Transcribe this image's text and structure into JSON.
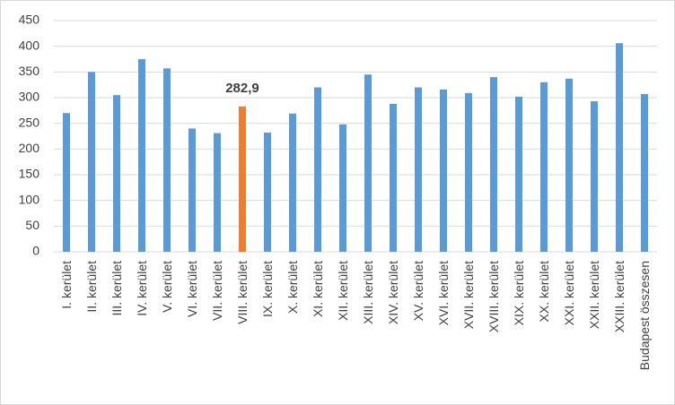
{
  "chart_data": {
    "type": "bar",
    "categories": [
      "I. kerület",
      "II. kerület",
      "III. kerület",
      "IV. kerület",
      "V. kerület",
      "VI. kerület",
      "VII. kerület",
      "VIII. kerület",
      "IX. kerület",
      "X. kerület",
      "XI. kerület",
      "XII. kerület",
      "XIII. kerület",
      "XIV. kerület",
      "XV. kerület",
      "XVI. kerület",
      "XVII. kerület",
      "XVIII. kerület",
      "XIX. kerület",
      "XX. kerület",
      "XXI. kerület",
      "XXII. kerület",
      "XXIII. kerület",
      "Budapest összesen"
    ],
    "values": [
      270,
      350,
      305,
      375,
      357,
      240,
      231,
      282.9,
      232,
      269,
      320,
      248,
      345,
      288,
      320,
      316,
      309,
      340,
      302,
      330,
      337,
      293,
      406,
      307
    ],
    "value_labels": [
      null,
      null,
      null,
      null,
      null,
      null,
      null,
      "282,9",
      null,
      null,
      null,
      null,
      null,
      null,
      null,
      null,
      null,
      null,
      null,
      null,
      null,
      null,
      null,
      null
    ],
    "colors": [
      "#5b9bd5",
      "#5b9bd5",
      "#5b9bd5",
      "#5b9bd5",
      "#5b9bd5",
      "#5b9bd5",
      "#5b9bd5",
      "#ed7d31",
      "#5b9bd5",
      "#5b9bd5",
      "#5b9bd5",
      "#5b9bd5",
      "#5b9bd5",
      "#5b9bd5",
      "#5b9bd5",
      "#5b9bd5",
      "#5b9bd5",
      "#5b9bd5",
      "#5b9bd5",
      "#5b9bd5",
      "#5b9bd5",
      "#5b9bd5",
      "#5b9bd5",
      "#5b9bd5"
    ],
    "ylim": [
      0,
      450
    ],
    "yticks": [
      0,
      50,
      100,
      150,
      200,
      250,
      300,
      350,
      400,
      450
    ],
    "grid": true
  }
}
